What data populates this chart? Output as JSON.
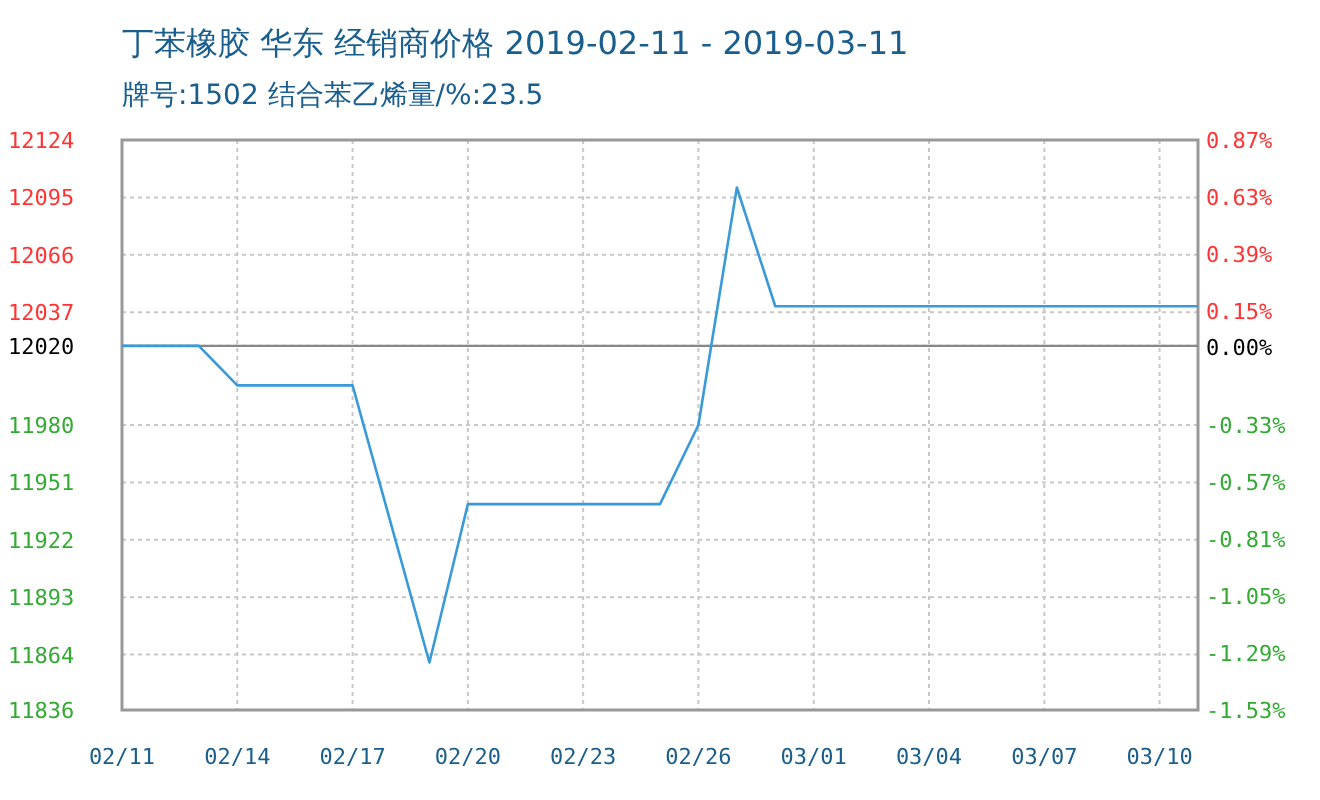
{
  "chart_data": {
    "type": "line",
    "title": "丁苯橡胶 华东 经销商价格 2019-02-11 - 2019-03-11",
    "subtitle": "牌号:1502 结合苯乙烯量/%:23.5",
    "x": [
      "2019-02-11",
      "2019-02-13",
      "2019-02-14",
      "2019-02-17",
      "2019-02-19",
      "2019-02-20",
      "2019-02-25",
      "2019-02-26",
      "2019-02-27",
      "2019-02-28",
      "2019-03-11"
    ],
    "series": [
      {
        "color": "#3a9ad9",
        "values": [
          12020,
          12020,
          12000,
          12000,
          11860,
          11940,
          11940,
          11980,
          12100,
          12040,
          12040
        ]
      }
    ],
    "xlim": [
      "2019-02-11",
      "2019-03-11"
    ],
    "xticks": [
      {
        "value": "2019-02-11",
        "label": "02/11"
      },
      {
        "value": "2019-02-14",
        "label": "02/14"
      },
      {
        "value": "2019-02-17",
        "label": "02/17"
      },
      {
        "value": "2019-02-20",
        "label": "02/20"
      },
      {
        "value": "2019-02-23",
        "label": "02/23"
      },
      {
        "value": "2019-02-26",
        "label": "02/26"
      },
      {
        "value": "2019-03-01",
        "label": "03/01"
      },
      {
        "value": "2019-03-04",
        "label": "03/04"
      },
      {
        "value": "2019-03-07",
        "label": "03/07"
      },
      {
        "value": "2019-03-10",
        "label": "03/10"
      }
    ],
    "ylim": [
      11836,
      12124
    ],
    "yticks": [
      12124,
      12095,
      12066,
      12037,
      12020,
      11980,
      11951,
      11922,
      11893,
      11864,
      11836
    ],
    "y2lim": [
      -1.53,
      0.87
    ],
    "y2ticks": [
      {
        "value": 0.87,
        "label": "0.87%"
      },
      {
        "value": 0.63,
        "label": "0.63%"
      },
      {
        "value": 0.39,
        "label": "0.39%"
      },
      {
        "value": 0.15,
        "label": "0.15%"
      },
      {
        "value": 0,
        "label": "0.00%"
      },
      {
        "value": -0.33,
        "label": "-0.33%"
      },
      {
        "value": -0.57,
        "label": "-0.57%"
      },
      {
        "value": -0.81,
        "label": "-0.81%"
      },
      {
        "value": -1.05,
        "label": "-1.05%"
      },
      {
        "value": -1.29,
        "label": "-1.29%"
      },
      {
        "value": -1.53,
        "label": "-1.53%"
      }
    ],
    "ref_lines": [
      {
        "axis": "y",
        "value": 12020,
        "color": "#888888"
      }
    ],
    "grid": true,
    "marker": "none",
    "line_style": "solid"
  }
}
